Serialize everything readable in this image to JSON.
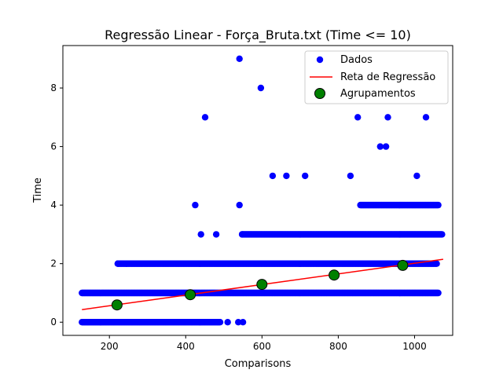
{
  "chart_data": {
    "type": "scatter",
    "title": "Regressão Linear - Força_Bruta.txt (Time <= 10)",
    "xlabel": "Comparisons",
    "ylabel": "Time",
    "xlim": [
      78,
      1100
    ],
    "ylim": [
      -0.45,
      9.45
    ],
    "x_ticks": [
      200,
      400,
      600,
      800,
      1000
    ],
    "y_ticks": [
      0,
      2,
      4,
      6,
      8
    ],
    "grid": false,
    "legend_position": "top-right",
    "legend": [
      "Dados",
      "Reta de Regressão",
      "Agrupamentos"
    ],
    "colors": {
      "data": "#0000ff",
      "regression": "#ff0000",
      "cluster_fill": "#008000",
      "cluster_edge": "#000000"
    },
    "series": [
      {
        "name": "Dados",
        "kind": "scatter",
        "bands": [
          {
            "y": 0,
            "x_from": 128,
            "x_to": 490
          },
          {
            "y": 1,
            "x_from": 128,
            "x_to": 1062
          },
          {
            "y": 2,
            "x_from": 222,
            "x_to": 1058
          },
          {
            "y": 3,
            "x_from": 548,
            "x_to": 1072
          },
          {
            "y": 4,
            "x_from": 858,
            "x_to": 1062
          }
        ],
        "points": [
          {
            "x": 510,
            "y": 0
          },
          {
            "x": 538,
            "y": 0
          },
          {
            "x": 550,
            "y": 0
          },
          {
            "x": 222,
            "y": 2
          },
          {
            "x": 245,
            "y": 2
          },
          {
            "x": 440,
            "y": 3
          },
          {
            "x": 480,
            "y": 3
          },
          {
            "x": 548,
            "y": 3
          },
          {
            "x": 425,
            "y": 4
          },
          {
            "x": 541,
            "y": 4
          },
          {
            "x": 628,
            "y": 5
          },
          {
            "x": 664,
            "y": 5
          },
          {
            "x": 713,
            "y": 5
          },
          {
            "x": 832,
            "y": 5
          },
          {
            "x": 1006,
            "y": 5
          },
          {
            "x": 910,
            "y": 6
          },
          {
            "x": 925,
            "y": 6
          },
          {
            "x": 451,
            "y": 7
          },
          {
            "x": 851,
            "y": 7
          },
          {
            "x": 930,
            "y": 7
          },
          {
            "x": 1030,
            "y": 7
          },
          {
            "x": 597,
            "y": 8
          },
          {
            "x": 541,
            "y": 9
          }
        ]
      },
      {
        "name": "Reta de Regressão",
        "kind": "line",
        "x": [
          128,
          1075
        ],
        "y": [
          0.43,
          2.15
        ]
      },
      {
        "name": "Agrupamentos",
        "kind": "scatter",
        "x": [
          220,
          412,
          600,
          789,
          969
        ],
        "y": [
          0.59,
          0.94,
          1.29,
          1.61,
          1.94
        ]
      }
    ]
  }
}
